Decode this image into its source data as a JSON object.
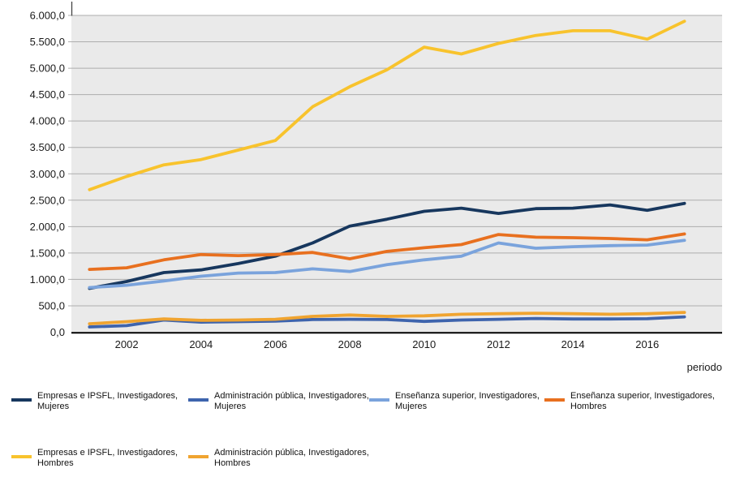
{
  "chart_data": {
    "type": "line",
    "x": [
      2001,
      2002,
      2003,
      2004,
      2005,
      2006,
      2007,
      2008,
      2009,
      2010,
      2011,
      2012,
      2013,
      2014,
      2015,
      2016,
      2017
    ],
    "xlabel": "periodo",
    "ylim": [
      0,
      6000
    ],
    "ytick_step": 500,
    "ytick_labels": [
      "0,0",
      "500,0",
      "1.000,0",
      "1.500,0",
      "2.000,0",
      "2.500,0",
      "3.000,0",
      "3.500,0",
      "4.000,0",
      "4.500,0",
      "5.000,0",
      "5.500,0",
      "6.000,0"
    ],
    "xtick_years": [
      2002,
      2004,
      2006,
      2008,
      2010,
      2012,
      2014,
      2016
    ],
    "xtick_labels": [
      "2002",
      "2004",
      "2006",
      "2008",
      "2010",
      "2012",
      "2014",
      "2016"
    ],
    "grid": true,
    "plot_bg": "#eaeaea",
    "grid_color": "#adadad",
    "axis_color": "#000000",
    "legend_position": "bottom",
    "series": [
      {
        "name": "Empresas e IPSFL, Investigadores, Mujeres",
        "color": "#17375e",
        "values": [
          830,
          960,
          1130,
          1180,
          1300,
          1440,
          1690,
          2010,
          2140,
          2290,
          2350,
          2250,
          2340,
          2350,
          2410,
          2310,
          2440
        ]
      },
      {
        "name": "Administración pública, Investigadores, Mujeres",
        "color": "#3e64ad",
        "values": [
          100,
          125,
          230,
          190,
          200,
          210,
          240,
          245,
          240,
          205,
          230,
          245,
          260,
          250,
          250,
          255,
          290
        ]
      },
      {
        "name": "Enseñanza superior, Investigadores, Mujeres",
        "color": "#7aa3dc",
        "values": [
          845,
          890,
          970,
          1060,
          1120,
          1130,
          1200,
          1150,
          1280,
          1370,
          1440,
          1690,
          1590,
          1620,
          1640,
          1650,
          1740
        ]
      },
      {
        "name": "Enseñanza superior, Investigadores, Hombres",
        "color": "#e8701f",
        "values": [
          1190,
          1220,
          1370,
          1470,
          1450,
          1470,
          1510,
          1390,
          1530,
          1600,
          1660,
          1850,
          1800,
          1790,
          1775,
          1750,
          1860
        ]
      },
      {
        "name": "Empresas e IPSFL, Investigadores, Hombres",
        "color": "#f8c32d",
        "values": [
          2700,
          2950,
          3170,
          3270,
          3450,
          3630,
          4270,
          4650,
          4970,
          5400,
          5270,
          5470,
          5620,
          5710,
          5710,
          5550,
          5890
        ]
      },
      {
        "name": "Administración pública, Investigadores, Hombres",
        "color": "#f0a430",
        "values": [
          160,
          200,
          250,
          225,
          230,
          245,
          300,
          325,
          300,
          310,
          340,
          350,
          360,
          350,
          340,
          350,
          375
        ]
      }
    ],
    "legend": {
      "rows": [
        [
          0,
          1,
          2,
          3
        ],
        [
          4,
          5
        ]
      ],
      "entries": [
        {
          "series": 0,
          "lines": [
            "Empresas e IPSFL, Investigadores,",
            "Mujeres"
          ]
        },
        {
          "series": 1,
          "lines": [
            "Administración pública, Investigadores,",
            "Mujeres"
          ]
        },
        {
          "series": 2,
          "lines": [
            "Enseñanza superior, Investigadores,",
            "Mujeres"
          ]
        },
        {
          "series": 3,
          "lines": [
            "Enseñanza superior, Investigadores,",
            "Hombres"
          ]
        },
        {
          "series": 4,
          "lines": [
            "Empresas e IPSFL, Investigadores,",
            "Hombres"
          ]
        },
        {
          "series": 5,
          "lines": [
            "Administración pública, Investigadores,",
            "Hombres"
          ]
        }
      ]
    }
  }
}
